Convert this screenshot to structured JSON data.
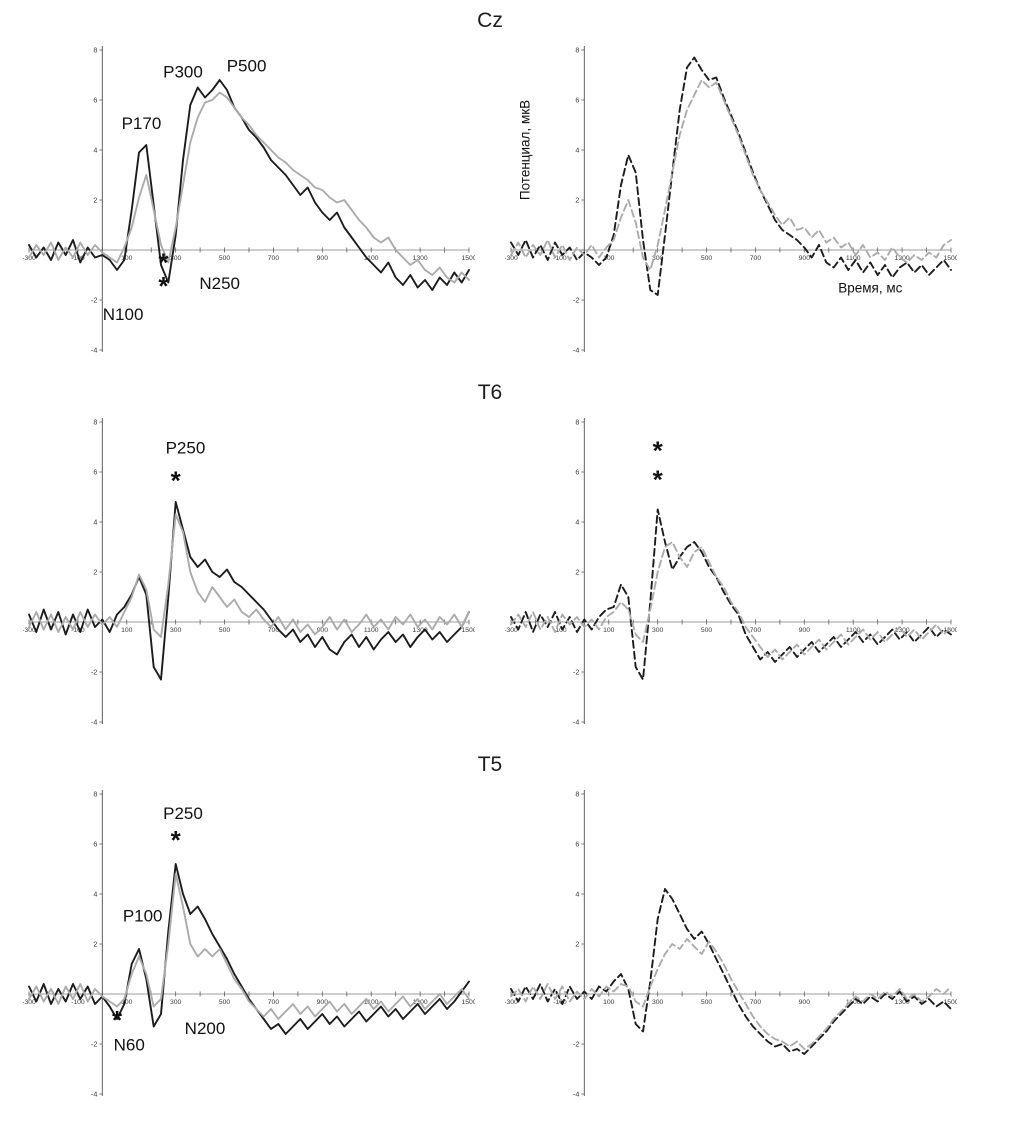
{
  "page": {
    "background": "#ffffff"
  },
  "rows": [
    {
      "title": "Cz"
    },
    {
      "title": "T6"
    },
    {
      "title": "T5"
    }
  ],
  "colors": {
    "black": "#1c1c1c",
    "gray": "#ababab",
    "axis_line": "#5f5f5f",
    "zero_line": "#9c9c9c",
    "tick_text": "#3a3a3a",
    "annotation_text": "#111111"
  },
  "axis": {
    "xlim": [
      -300,
      1500
    ],
    "ylim": [
      -4,
      8
    ],
    "xtick_labels": [
      -300,
      -100,
      100,
      300,
      500,
      700,
      900,
      1100,
      1300,
      1500
    ],
    "xtick_minor_step": 100,
    "ytick_labels": [
      8,
      6,
      4,
      2,
      -2,
      -4
    ],
    "ytick_step": 2
  },
  "chart_data": [
    {
      "id": "cz-left",
      "row": "Cz",
      "column": "left",
      "type": "line",
      "line_style": "solid",
      "x_start": -300,
      "x_step": 30,
      "series": [
        {
          "name": "black",
          "color_key": "black",
          "values": [
            0.2,
            -0.3,
            0.1,
            -0.4,
            0.3,
            -0.2,
            0.4,
            -0.5,
            0.1,
            -0.3,
            -0.2,
            -0.4,
            -0.8,
            -0.4,
            1.6,
            3.9,
            4.2,
            1.8,
            -0.6,
            -1.3,
            0.6,
            3.6,
            5.8,
            6.5,
            6.1,
            6.4,
            6.8,
            6.4,
            5.7,
            5.3,
            4.8,
            4.5,
            4.1,
            3.6,
            3.3,
            3.0,
            2.6,
            2.2,
            2.5,
            1.9,
            1.5,
            1.2,
            1.5,
            0.9,
            0.5,
            0.1,
            -0.3,
            -0.6,
            -0.9,
            -0.5,
            -1.1,
            -1.4,
            -1.0,
            -1.5,
            -1.2,
            -1.6,
            -1.1,
            -1.4,
            -0.9,
            -1.3,
            -0.8
          ]
        },
        {
          "name": "gray",
          "color_key": "gray",
          "values": [
            -0.3,
            0.2,
            -0.2,
            0.3,
            -0.4,
            0.1,
            -0.3,
            0.3,
            -0.2,
            0.2,
            -0.1,
            -0.3,
            -0.5,
            0.1,
            0.9,
            2.1,
            3.0,
            1.6,
            0.2,
            -0.5,
            0.9,
            2.6,
            4.3,
            5.3,
            5.9,
            6.0,
            6.3,
            6.1,
            5.7,
            5.3,
            5.0,
            4.6,
            4.3,
            4.0,
            3.7,
            3.5,
            3.2,
            3.0,
            2.8,
            2.5,
            2.4,
            2.1,
            1.9,
            2.0,
            1.6,
            1.2,
            0.9,
            0.5,
            0.3,
            0.5,
            0.0,
            -0.3,
            -0.6,
            -0.4,
            -0.8,
            -1.0,
            -0.7,
            -1.1,
            -1.3,
            -0.9,
            -1.2
          ]
        }
      ],
      "annotations": [
        {
          "text": "P170",
          "x": 160,
          "y": 4.85,
          "size": 17
        },
        {
          "text": "P300",
          "x": 330,
          "y": 6.9,
          "size": 17
        },
        {
          "text": "P500",
          "x": 590,
          "y": 7.15,
          "size": 17
        },
        {
          "text": "*",
          "x": 250,
          "y": -0.85,
          "size": 26
        },
        {
          "text": "*",
          "x": 250,
          "y": -1.8,
          "size": 26
        },
        {
          "text": "N250",
          "x": 480,
          "y": -1.55,
          "size": 17
        },
        {
          "text": "N100",
          "x": 85,
          "y": -2.8,
          "size": 17
        }
      ]
    },
    {
      "id": "cz-right",
      "row": "Cz",
      "column": "right",
      "type": "line",
      "line_style": "dashed",
      "x_start": -300,
      "x_step": 30,
      "series": [
        {
          "name": "black",
          "color_key": "black",
          "values": [
            0.3,
            -0.2,
            0.4,
            -0.3,
            0.2,
            -0.4,
            0.3,
            -0.2,
            0.1,
            -0.4,
            -0.1,
            -0.3,
            -0.6,
            -0.3,
            0.6,
            2.6,
            3.8,
            3.1,
            0.4,
            -1.6,
            -1.8,
            0.6,
            3.1,
            5.6,
            7.3,
            7.7,
            7.2,
            6.8,
            6.9,
            6.1,
            5.4,
            4.7,
            3.9,
            3.1,
            2.4,
            1.8,
            1.2,
            0.8,
            0.6,
            0.4,
            0.1,
            -0.3,
            0.2,
            -0.5,
            -0.7,
            -0.3,
            -0.8,
            -0.4,
            -0.9,
            -0.5,
            -1.0,
            -0.6,
            -1.1,
            -0.7,
            -0.5,
            -0.9,
            -0.6,
            -1.0,
            -0.7,
            -0.4,
            -0.8
          ]
        },
        {
          "name": "gray",
          "color_key": "gray",
          "values": [
            -0.2,
            0.3,
            -0.3,
            0.2,
            -0.2,
            0.4,
            -0.3,
            0.2,
            -0.4,
            0.1,
            -0.2,
            0.2,
            -0.3,
            0.1,
            0.4,
            1.3,
            2.0,
            1.1,
            -0.3,
            -0.8,
            0.2,
            1.6,
            3.1,
            4.6,
            5.6,
            6.2,
            6.8,
            6.5,
            6.7,
            6.0,
            5.3,
            4.6,
            3.8,
            3.0,
            2.4,
            1.9,
            1.4,
            1.0,
            1.3,
            0.8,
            0.9,
            0.5,
            0.8,
            0.3,
            0.5,
            0.1,
            0.3,
            -0.2,
            0.2,
            -0.3,
            -0.1,
            -0.4,
            0.1,
            -0.3,
            -0.5,
            -0.2,
            -0.4,
            -0.1,
            -0.3,
            0.2,
            0.4
          ]
        }
      ],
      "annotations": [
        {
          "text": "Потенциал, мкВ",
          "x": -225,
          "y": 4.0,
          "size": 13.5,
          "rotate": -90
        },
        {
          "text": "Время, мс",
          "x": 1170,
          "y": -1.7,
          "size": 13.5
        }
      ]
    },
    {
      "id": "t6-left",
      "row": "T6",
      "column": "left",
      "type": "line",
      "line_style": "solid",
      "x_start": -300,
      "x_step": 30,
      "series": [
        {
          "name": "black",
          "color_key": "black",
          "values": [
            0.3,
            -0.4,
            0.5,
            -0.3,
            0.4,
            -0.5,
            0.3,
            -0.4,
            0.5,
            -0.2,
            0.1,
            -0.4,
            0.3,
            0.6,
            1.1,
            1.8,
            1.1,
            -1.8,
            -2.3,
            1.0,
            4.8,
            3.7,
            2.6,
            2.2,
            2.5,
            2.0,
            1.8,
            2.1,
            1.6,
            1.4,
            1.1,
            0.8,
            0.5,
            0.1,
            -0.3,
            -0.6,
            -0.3,
            -0.8,
            -0.5,
            -1.0,
            -0.6,
            -1.1,
            -1.3,
            -0.8,
            -0.5,
            -1.0,
            -0.6,
            -1.1,
            -0.7,
            -0.4,
            -0.8,
            -0.5,
            -1.0,
            -0.6,
            -0.3,
            -0.7,
            -0.4,
            -0.8,
            -0.5,
            -0.2,
            0.4
          ]
        },
        {
          "name": "gray",
          "color_key": "gray",
          "values": [
            -0.2,
            0.4,
            -0.3,
            0.3,
            -0.4,
            0.2,
            -0.3,
            0.4,
            -0.2,
            0.3,
            -0.1,
            0.2,
            -0.2,
            0.4,
            1.0,
            1.9,
            1.3,
            -0.3,
            -0.6,
            1.5,
            4.3,
            3.6,
            2.0,
            1.2,
            0.8,
            1.4,
            1.0,
            0.6,
            0.9,
            0.4,
            0.2,
            0.5,
            0.1,
            -0.2,
            0.2,
            -0.3,
            0.1,
            -0.4,
            -0.1,
            -0.5,
            -0.2,
            0.2,
            -0.3,
            0.1,
            -0.4,
            -0.1,
            0.3,
            -0.2,
            0.1,
            -0.3,
            0.2,
            -0.1,
            0.3,
            -0.2,
            0.1,
            -0.3,
            0.2,
            -0.1,
            0.3,
            -0.2,
            0.4
          ]
        }
      ],
      "annotations": [
        {
          "text": "P250",
          "x": 340,
          "y": 6.75,
          "size": 17
        },
        {
          "text": "*",
          "x": 300,
          "y": 5.3,
          "size": 26
        }
      ]
    },
    {
      "id": "t6-right",
      "row": "T6",
      "column": "right",
      "type": "line",
      "line_style": "dashed",
      "x_start": -300,
      "x_step": 30,
      "series": [
        {
          "name": "black",
          "color_key": "black",
          "values": [
            0.2,
            -0.3,
            0.4,
            -0.4,
            0.3,
            -0.2,
            0.4,
            -0.3,
            0.2,
            -0.4,
            0.1,
            -0.3,
            0.2,
            0.5,
            0.6,
            1.5,
            1.0,
            -1.8,
            -2.3,
            0.8,
            4.5,
            3.2,
            2.1,
            2.6,
            3.0,
            3.2,
            2.8,
            2.2,
            1.8,
            1.2,
            0.7,
            0.3,
            -0.5,
            -1.0,
            -1.5,
            -1.2,
            -1.6,
            -1.3,
            -1.0,
            -1.4,
            -1.1,
            -0.8,
            -1.2,
            -0.9,
            -0.6,
            -1.0,
            -0.7,
            -0.4,
            -0.8,
            -0.5,
            -0.9,
            -0.6,
            -0.3,
            -0.7,
            -0.4,
            -0.8,
            -0.5,
            -0.2,
            -0.6,
            -0.3,
            -0.5
          ]
        },
        {
          "name": "gray",
          "color_key": "gray",
          "values": [
            -0.1,
            0.3,
            -0.2,
            0.4,
            -0.3,
            0.2,
            -0.4,
            0.3,
            -0.1,
            0.2,
            -0.2,
            0.1,
            -0.3,
            0.2,
            0.4,
            0.8,
            0.5,
            -0.5,
            -0.8,
            0.5,
            2.0,
            3.0,
            3.2,
            2.6,
            2.2,
            2.8,
            3.0,
            2.4,
            1.8,
            1.4,
            0.8,
            0.4,
            -0.2,
            -0.6,
            -1.0,
            -1.4,
            -1.1,
            -1.5,
            -1.2,
            -0.9,
            -1.3,
            -1.0,
            -0.7,
            -1.1,
            -0.8,
            -0.5,
            -0.9,
            -0.6,
            -0.3,
            -0.7,
            -0.4,
            -0.8,
            -0.5,
            -0.2,
            -0.6,
            -0.3,
            -0.7,
            -0.4,
            -0.1,
            -0.5,
            -0.2
          ]
        }
      ],
      "annotations": [
        {
          "text": "*",
          "x": 300,
          "y": 6.5,
          "size": 26
        },
        {
          "text": "*",
          "x": 300,
          "y": 5.35,
          "size": 26
        }
      ]
    },
    {
      "id": "t5-left",
      "row": "T5",
      "column": "left",
      "type": "line",
      "line_style": "solid",
      "x_start": -300,
      "x_step": 30,
      "series": [
        {
          "name": "black",
          "color_key": "black",
          "values": [
            0.3,
            -0.3,
            0.4,
            -0.4,
            0.2,
            -0.3,
            0.4,
            -0.2,
            0.3,
            -0.4,
            -0.1,
            -0.5,
            -1.0,
            -0.4,
            1.2,
            1.8,
            0.6,
            -1.3,
            -0.8,
            2.5,
            5.2,
            4.0,
            3.2,
            3.5,
            3.0,
            2.4,
            1.9,
            1.4,
            0.8,
            0.3,
            -0.2,
            -0.6,
            -1.0,
            -1.4,
            -1.2,
            -1.6,
            -1.3,
            -1.0,
            -1.4,
            -1.1,
            -0.8,
            -1.2,
            -0.9,
            -1.3,
            -1.0,
            -0.7,
            -1.1,
            -0.8,
            -0.5,
            -0.9,
            -0.6,
            -1.0,
            -0.7,
            -0.4,
            -0.8,
            -0.5,
            -0.2,
            -0.6,
            -0.3,
            0.1,
            0.5
          ]
        },
        {
          "name": "gray",
          "color_key": "gray",
          "values": [
            -0.2,
            0.3,
            -0.3,
            0.2,
            -0.4,
            0.3,
            -0.2,
            0.4,
            -0.3,
            0.2,
            -0.1,
            -0.3,
            -0.5,
            -0.2,
            0.8,
            1.5,
            0.8,
            -0.5,
            -0.2,
            2.0,
            4.8,
            3.5,
            2.0,
            1.5,
            1.8,
            1.5,
            1.8,
            1.2,
            0.6,
            0.2,
            -0.3,
            -0.6,
            -0.9,
            -0.6,
            -1.0,
            -0.7,
            -0.4,
            -0.8,
            -0.5,
            -0.9,
            -0.6,
            -0.3,
            -0.7,
            -0.4,
            -0.8,
            -0.5,
            -0.2,
            -0.6,
            -0.3,
            -0.7,
            -0.4,
            -0.1,
            -0.5,
            -0.2,
            -0.6,
            -0.3,
            0.0,
            -0.4,
            -0.1,
            0.2,
            -0.2
          ]
        }
      ],
      "annotations": [
        {
          "text": "P250",
          "x": 330,
          "y": 7.0,
          "size": 17
        },
        {
          "text": "*",
          "x": 300,
          "y": 5.8,
          "size": 26
        },
        {
          "text": "P100",
          "x": 165,
          "y": 2.9,
          "size": 17
        },
        {
          "text": "*",
          "x": 60,
          "y": -1.4,
          "size": 26
        },
        {
          "text": "N60",
          "x": 110,
          "y": -2.25,
          "size": 17
        },
        {
          "text": "N200",
          "x": 420,
          "y": -1.6,
          "size": 17
        }
      ]
    },
    {
      "id": "t5-right",
      "row": "T5",
      "column": "right",
      "type": "line",
      "line_style": "dashed",
      "x_start": -300,
      "x_step": 30,
      "series": [
        {
          "name": "black",
          "color_key": "black",
          "values": [
            0.2,
            -0.3,
            0.3,
            -0.2,
            0.4,
            -0.3,
            0.2,
            -0.4,
            0.3,
            -0.2,
            0.1,
            -0.2,
            0.3,
            0.1,
            0.5,
            0.8,
            0.2,
            -1.2,
            -1.5,
            0.5,
            3.0,
            4.2,
            3.8,
            3.2,
            2.6,
            2.2,
            2.5,
            2.0,
            1.4,
            0.8,
            0.2,
            -0.4,
            -0.9,
            -1.3,
            -1.6,
            -1.9,
            -2.1,
            -2.0,
            -2.3,
            -2.2,
            -2.4,
            -2.1,
            -1.8,
            -1.5,
            -1.1,
            -0.8,
            -0.5,
            -0.2,
            -0.4,
            -0.1,
            -0.3,
            0.0,
            -0.2,
            0.1,
            -0.3,
            -0.1,
            -0.4,
            -0.2,
            -0.5,
            -0.3,
            -0.6
          ]
        },
        {
          "name": "gray",
          "color_key": "gray",
          "values": [
            -0.1,
            0.2,
            -0.3,
            0.3,
            -0.2,
            0.4,
            -0.2,
            0.3,
            -0.3,
            0.1,
            -0.2,
            0.2,
            -0.1,
            0.3,
            0.1,
            0.4,
            0.3,
            -0.3,
            -0.5,
            0.3,
            1.0,
            1.6,
            2.0,
            1.8,
            2.2,
            1.9,
            1.6,
            2.1,
            1.7,
            1.2,
            0.6,
            0.1,
            -0.4,
            -0.9,
            -1.3,
            -1.6,
            -1.8,
            -1.9,
            -2.1,
            -1.9,
            -2.2,
            -2.0,
            -1.7,
            -1.4,
            -1.0,
            -0.7,
            -0.4,
            -0.1,
            -0.3,
            0.0,
            -0.2,
            0.1,
            -0.1,
            0.2,
            -0.2,
            0.0,
            -0.3,
            -0.1,
            0.2,
            0.0,
            0.3
          ]
        }
      ],
      "annotations": []
    }
  ]
}
